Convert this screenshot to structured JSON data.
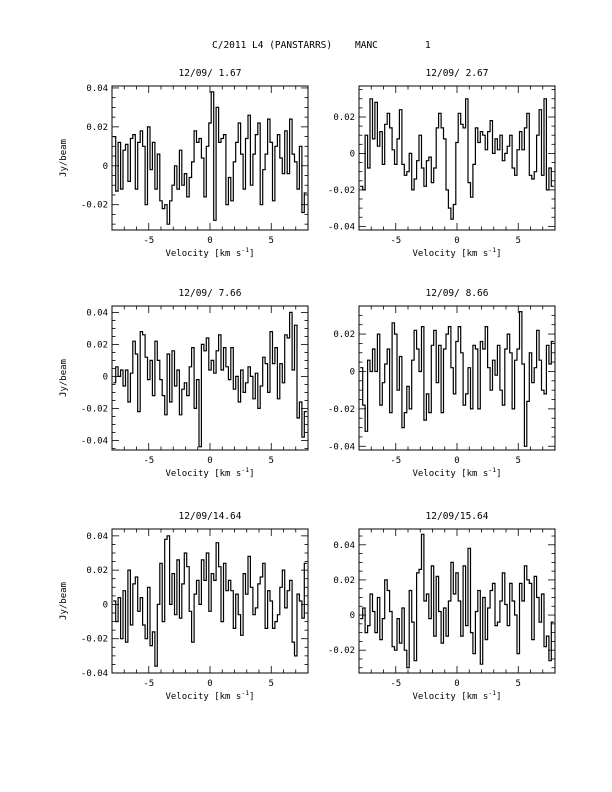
{
  "page": {
    "header": {
      "object": "C/2011 L4 (PANSTARRS)",
      "receiver": "MANC",
      "page_number": "1"
    }
  },
  "chart_data": [
    {
      "type": "line",
      "step": true,
      "title": "12/09/ 1.67",
      "xlabel": "Velocity [km s",
      "xlabel_exp": "-1",
      "ylabel": "Jy/beam",
      "xlim": [
        -8,
        8
      ],
      "ylim": [
        -0.033,
        0.041
      ],
      "xticks": [
        -5,
        0,
        5
      ],
      "yticks": [
        -0.02,
        0,
        0.02,
        0.04
      ],
      "ytick_labels": [
        "-0.02",
        "0",
        "0.02",
        "0.04"
      ],
      "x": [
        -7.8,
        -7.6,
        -7.4,
        -7.2,
        -7.0,
        -6.8,
        -6.6,
        -6.4,
        -6.2,
        -6.0,
        -5.8,
        -5.6,
        -5.4,
        -5.2,
        -5.0,
        -4.8,
        -4.6,
        -4.4,
        -4.2,
        -4.0,
        -3.8,
        -3.6,
        -3.4,
        -3.2,
        -3.0,
        -2.8,
        -2.6,
        -2.4,
        -2.2,
        -2.0,
        -1.8,
        -1.6,
        -1.4,
        -1.2,
        -1.0,
        -0.8,
        -0.6,
        -0.4,
        -0.2,
        0.0,
        0.2,
        0.4,
        0.6,
        0.8,
        1.0,
        1.2,
        1.4,
        1.6,
        1.8,
        2.0,
        2.2,
        2.4,
        2.6,
        2.8,
        3.0,
        3.2,
        3.4,
        3.6,
        3.8,
        4.0,
        4.2,
        4.4,
        4.6,
        4.8,
        5.0,
        5.2,
        5.4,
        5.6,
        5.8,
        6.0,
        6.2,
        6.4,
        6.6,
        6.8,
        7.0,
        7.2,
        7.4,
        7.6,
        7.8
      ],
      "y": [
        0.015,
        -0.013,
        0.012,
        -0.012,
        0.008,
        0.011,
        -0.008,
        0.014,
        0.016,
        -0.012,
        0.012,
        0.018,
        0.01,
        -0.02,
        0.02,
        -0.002,
        0.012,
        -0.012,
        0.006,
        -0.018,
        -0.022,
        -0.02,
        -0.03,
        -0.018,
        -0.01,
        0.0,
        -0.012,
        0.008,
        -0.01,
        -0.004,
        -0.016,
        -0.006,
        0.002,
        0.018,
        0.012,
        0.014,
        0.004,
        -0.016,
        0.01,
        0.022,
        0.038,
        -0.028,
        0.03,
        0.012,
        0.014,
        0.016,
        -0.02,
        -0.006,
        -0.018,
        0.002,
        0.012,
        0.022,
        0.006,
        -0.012,
        0.014,
        0.026,
        -0.01,
        0.006,
        0.016,
        0.022,
        -0.02,
        -0.002,
        0.006,
        0.024,
        0.012,
        -0.018,
        0.01,
        0.016,
        0.004,
        -0.004,
        0.018,
        -0.004,
        0.024,
        0.006,
        0.002,
        -0.012,
        0.01,
        -0.024,
        -0.014
      ]
    },
    {
      "type": "line",
      "step": true,
      "title": "12/09/ 2.67",
      "xlabel": "Velocity [km s",
      "xlabel_exp": "-1",
      "ylabel": "",
      "xlim": [
        -8,
        8
      ],
      "ylim": [
        -0.042,
        0.037
      ],
      "xticks": [
        -5,
        0,
        5
      ],
      "yticks": [
        -0.04,
        -0.02,
        0,
        0.02
      ],
      "ytick_labels": [
        "-0.04",
        "-0.02",
        "0",
        "0.02"
      ],
      "x": [
        -7.8,
        -7.6,
        -7.4,
        -7.2,
        -7.0,
        -6.8,
        -6.6,
        -6.4,
        -6.2,
        -6.0,
        -5.8,
        -5.6,
        -5.4,
        -5.2,
        -5.0,
        -4.8,
        -4.6,
        -4.4,
        -4.2,
        -4.0,
        -3.8,
        -3.6,
        -3.4,
        -3.2,
        -3.0,
        -2.8,
        -2.6,
        -2.4,
        -2.2,
        -2.0,
        -1.8,
        -1.6,
        -1.4,
        -1.2,
        -1.0,
        -0.8,
        -0.6,
        -0.4,
        -0.2,
        0.0,
        0.2,
        0.4,
        0.6,
        0.8,
        1.0,
        1.2,
        1.4,
        1.6,
        1.8,
        2.0,
        2.2,
        2.4,
        2.6,
        2.8,
        3.0,
        3.2,
        3.4,
        3.6,
        3.8,
        4.0,
        4.2,
        4.4,
        4.6,
        4.8,
        5.0,
        5.2,
        5.4,
        5.6,
        5.8,
        6.0,
        6.2,
        6.4,
        6.6,
        6.8,
        7.0,
        7.2,
        7.4,
        7.6,
        7.8
      ],
      "y": [
        -0.018,
        -0.02,
        0.01,
        -0.008,
        0.03,
        0.008,
        0.028,
        0.004,
        0.012,
        -0.006,
        0.016,
        0.022,
        0.014,
        0.002,
        -0.006,
        0.008,
        0.024,
        -0.006,
        -0.012,
        -0.01,
        0.0,
        -0.02,
        -0.014,
        -0.004,
        0.01,
        -0.008,
        -0.018,
        -0.004,
        -0.002,
        -0.016,
        -0.008,
        0.014,
        0.022,
        0.014,
        0.008,
        -0.02,
        -0.03,
        -0.036,
        -0.028,
        0.006,
        0.022,
        0.016,
        0.014,
        0.03,
        -0.016,
        -0.024,
        -0.006,
        0.014,
        0.006,
        0.012,
        0.01,
        0.002,
        0.012,
        0.018,
        0.0,
        0.008,
        0.002,
        0.01,
        -0.004,
        0.0,
        0.004,
        0.01,
        -0.008,
        -0.012,
        0.002,
        0.012,
        0.002,
        0.014,
        0.022,
        -0.012,
        -0.014,
        -0.01,
        0.01,
        0.024,
        -0.012,
        0.03,
        -0.02,
        -0.008,
        -0.018
      ]
    },
    {
      "type": "line",
      "step": true,
      "title": "12/09/ 7.66",
      "xlabel": "Velocity [km s",
      "xlabel_exp": "-1",
      "ylabel": "Jy/beam",
      "xlim": [
        -8,
        8
      ],
      "ylim": [
        -0.046,
        0.044
      ],
      "xticks": [
        -5,
        0,
        5
      ],
      "yticks": [
        -0.04,
        -0.02,
        0,
        0.02,
        0.04
      ],
      "ytick_labels": [
        "-0.04",
        "-0.02",
        "0",
        "0.02",
        "0.04"
      ],
      "x": [
        -7.8,
        -7.6,
        -7.4,
        -7.2,
        -7.0,
        -6.8,
        -6.6,
        -6.4,
        -6.2,
        -6.0,
        -5.8,
        -5.6,
        -5.4,
        -5.2,
        -5.0,
        -4.8,
        -4.6,
        -4.4,
        -4.2,
        -4.0,
        -3.8,
        -3.6,
        -3.4,
        -3.2,
        -3.0,
        -2.8,
        -2.6,
        -2.4,
        -2.2,
        -2.0,
        -1.8,
        -1.6,
        -1.4,
        -1.2,
        -1.0,
        -0.8,
        -0.6,
        -0.4,
        -0.2,
        0.0,
        0.2,
        0.4,
        0.6,
        0.8,
        1.0,
        1.2,
        1.4,
        1.6,
        1.8,
        2.0,
        2.2,
        2.4,
        2.6,
        2.8,
        3.0,
        3.2,
        3.4,
        3.6,
        3.8,
        4.0,
        4.2,
        4.4,
        4.6,
        4.8,
        5.0,
        5.2,
        5.4,
        5.6,
        5.8,
        6.0,
        6.2,
        6.4,
        6.6,
        6.8,
        7.0,
        7.2,
        7.4,
        7.6,
        7.8
      ],
      "y": [
        -0.004,
        0.006,
        0.0,
        0.004,
        -0.006,
        0.004,
        -0.016,
        0.002,
        0.022,
        0.014,
        -0.022,
        0.028,
        0.026,
        0.012,
        -0.002,
        0.01,
        -0.012,
        0.022,
        0.01,
        -0.002,
        -0.012,
        -0.024,
        0.014,
        -0.016,
        0.016,
        -0.006,
        0.004,
        -0.024,
        -0.008,
        -0.004,
        -0.012,
        0.006,
        0.018,
        -0.02,
        -0.002,
        -0.044,
        0.02,
        0.016,
        0.024,
        0.004,
        0.01,
        0.002,
        0.016,
        0.026,
        0.004,
        0.018,
        0.006,
        -0.002,
        0.018,
        -0.008,
        0.0,
        -0.016,
        0.004,
        -0.01,
        -0.004,
        0.006,
        0.0,
        -0.014,
        0.002,
        -0.02,
        -0.006,
        0.012,
        0.008,
        -0.01,
        0.028,
        0.008,
        0.018,
        -0.014,
        0.008,
        -0.004,
        0.026,
        0.024,
        0.04,
        0.004,
        0.032,
        -0.026,
        -0.016,
        -0.038,
        -0.022
      ]
    },
    {
      "type": "line",
      "step": true,
      "title": "12/09/ 8.66",
      "xlabel": "Velocity [km s",
      "xlabel_exp": "-1",
      "ylabel": "",
      "xlim": [
        -8,
        8
      ],
      "ylim": [
        -0.042,
        0.035
      ],
      "xticks": [
        -5,
        0,
        5
      ],
      "yticks": [
        -0.04,
        -0.02,
        0,
        0.02
      ],
      "ytick_labels": [
        "-0.04",
        "-0.02",
        "0",
        "0.02"
      ],
      "x": [
        -7.8,
        -7.6,
        -7.4,
        -7.2,
        -7.0,
        -6.8,
        -6.6,
        -6.4,
        -6.2,
        -6.0,
        -5.8,
        -5.6,
        -5.4,
        -5.2,
        -5.0,
        -4.8,
        -4.6,
        -4.4,
        -4.2,
        -4.0,
        -3.8,
        -3.6,
        -3.4,
        -3.2,
        -3.0,
        -2.8,
        -2.6,
        -2.4,
        -2.2,
        -2.0,
        -1.8,
        -1.6,
        -1.4,
        -1.2,
        -1.0,
        -0.8,
        -0.6,
        -0.4,
        -0.2,
        0.0,
        0.2,
        0.4,
        0.6,
        0.8,
        1.0,
        1.2,
        1.4,
        1.6,
        1.8,
        2.0,
        2.2,
        2.4,
        2.6,
        2.8,
        3.0,
        3.2,
        3.4,
        3.6,
        3.8,
        4.0,
        4.2,
        4.4,
        4.6,
        4.8,
        5.0,
        5.2,
        5.4,
        5.6,
        5.8,
        6.0,
        6.2,
        6.4,
        6.6,
        6.8,
        7.0,
        7.2,
        7.4,
        7.6,
        7.8
      ],
      "y": [
        0.002,
        -0.018,
        -0.032,
        0.006,
        0.0,
        0.012,
        0.0,
        0.02,
        -0.018,
        -0.006,
        0.004,
        0.012,
        -0.022,
        0.026,
        0.02,
        -0.01,
        0.008,
        -0.03,
        -0.022,
        -0.008,
        -0.02,
        0.006,
        0.022,
        0.012,
        0.0,
        0.024,
        -0.026,
        -0.012,
        -0.022,
        0.014,
        0.022,
        -0.006,
        0.014,
        -0.022,
        0.012,
        0.02,
        0.024,
        0.002,
        -0.012,
        0.016,
        0.024,
        0.01,
        -0.018,
        -0.012,
        0.002,
        -0.02,
        0.014,
        0.012,
        -0.02,
        0.016,
        0.012,
        0.024,
        0.002,
        -0.01,
        0.006,
        -0.002,
        0.014,
        -0.01,
        -0.018,
        0.012,
        0.02,
        0.01,
        -0.02,
        0.006,
        0.012,
        0.032,
        0.004,
        -0.04,
        -0.016,
        0.01,
        -0.006,
        0.002,
        0.022,
        0.006,
        -0.01,
        -0.012,
        0.014,
        0.004,
        0.016
      ]
    },
    {
      "type": "line",
      "step": true,
      "title": "12/09/14.64",
      "xlabel": "Velocity [km s",
      "xlabel_exp": "-1",
      "ylabel": "Jy/beam",
      "xlim": [
        -8,
        8
      ],
      "ylim": [
        -0.04,
        0.044
      ],
      "xticks": [
        -5,
        0,
        5
      ],
      "yticks": [
        -0.04,
        -0.02,
        0,
        0.02,
        0.04
      ],
      "ytick_labels": [
        "-0.04",
        "-0.02",
        "0",
        "0.02",
        "0.04"
      ],
      "x": [
        -7.8,
        -7.6,
        -7.4,
        -7.2,
        -7.0,
        -6.8,
        -6.6,
        -6.4,
        -6.2,
        -6.0,
        -5.8,
        -5.6,
        -5.4,
        -5.2,
        -5.0,
        -4.8,
        -4.6,
        -4.4,
        -4.2,
        -4.0,
        -3.8,
        -3.6,
        -3.4,
        -3.2,
        -3.0,
        -2.8,
        -2.6,
        -2.4,
        -2.2,
        -2.0,
        -1.8,
        -1.6,
        -1.4,
        -1.2,
        -1.0,
        -0.8,
        -0.6,
        -0.4,
        -0.2,
        0.0,
        0.2,
        0.4,
        0.6,
        0.8,
        1.0,
        1.2,
        1.4,
        1.6,
        1.8,
        2.0,
        2.2,
        2.4,
        2.6,
        2.8,
        3.0,
        3.2,
        3.4,
        3.6,
        3.8,
        4.0,
        4.2,
        4.4,
        4.6,
        4.8,
        5.0,
        5.2,
        5.4,
        5.6,
        5.8,
        6.0,
        6.2,
        6.4,
        6.6,
        6.8,
        7.0,
        7.2,
        7.4,
        7.6,
        7.8
      ],
      "y": [
        0.002,
        -0.01,
        0.004,
        -0.02,
        0.008,
        -0.022,
        0.02,
        -0.012,
        0.012,
        0.016,
        -0.004,
        0.004,
        -0.012,
        -0.02,
        0.01,
        -0.024,
        -0.016,
        -0.036,
        0.0,
        0.024,
        -0.01,
        0.038,
        0.04,
        0.0,
        0.018,
        -0.006,
        0.026,
        -0.008,
        0.012,
        0.03,
        0.022,
        -0.004,
        -0.022,
        0.006,
        0.014,
        0.0,
        0.026,
        0.014,
        0.03,
        -0.004,
        0.018,
        0.014,
        0.036,
        0.022,
        -0.01,
        0.024,
        0.008,
        0.014,
        0.008,
        -0.014,
        0.006,
        -0.006,
        -0.018,
        0.018,
        0.006,
        0.028,
        0.01,
        -0.006,
        -0.002,
        0.012,
        0.016,
        0.024,
        -0.014,
        0.008,
        0.002,
        -0.014,
        -0.01,
        -0.006,
        0.01,
        0.02,
        -0.002,
        0.008,
        0.014,
        -0.022,
        -0.03,
        0.006,
        0.002,
        -0.008,
        0.024
      ]
    },
    {
      "type": "line",
      "step": true,
      "title": "12/09/15.64",
      "xlabel": "Velocity [km s",
      "xlabel_exp": "-1",
      "ylabel": "",
      "xlim": [
        -8,
        8
      ],
      "ylim": [
        -0.033,
        0.049
      ],
      "xticks": [
        -5,
        0,
        5
      ],
      "yticks": [
        -0.02,
        0,
        0.02,
        0.04
      ],
      "ytick_labels": [
        "-0.02",
        "0",
        "0.02",
        "0.04"
      ],
      "x": [
        -7.8,
        -7.6,
        -7.4,
        -7.2,
        -7.0,
        -6.8,
        -6.6,
        -6.4,
        -6.2,
        -6.0,
        -5.8,
        -5.6,
        -5.4,
        -5.2,
        -5.0,
        -4.8,
        -4.6,
        -4.4,
        -4.2,
        -4.0,
        -3.8,
        -3.6,
        -3.4,
        -3.2,
        -3.0,
        -2.8,
        -2.6,
        -2.4,
        -2.2,
        -2.0,
        -1.8,
        -1.6,
        -1.4,
        -1.2,
        -1.0,
        -0.8,
        -0.6,
        -0.4,
        -0.2,
        0.0,
        0.2,
        0.4,
        0.6,
        0.8,
        1.0,
        1.2,
        1.4,
        1.6,
        1.8,
        2.0,
        2.2,
        2.4,
        2.6,
        2.8,
        3.0,
        3.2,
        3.4,
        3.6,
        3.8,
        4.0,
        4.2,
        4.4,
        4.6,
        4.8,
        5.0,
        5.2,
        5.4,
        5.6,
        5.8,
        6.0,
        6.2,
        6.4,
        6.6,
        6.8,
        7.0,
        7.2,
        7.4,
        7.6,
        7.8
      ],
      "y": [
        -0.002,
        0.004,
        -0.01,
        -0.006,
        0.012,
        0.002,
        -0.01,
        0.01,
        -0.014,
        -0.002,
        0.02,
        0.014,
        0.002,
        -0.018,
        -0.02,
        -0.002,
        -0.016,
        0.004,
        -0.02,
        -0.03,
        0.014,
        -0.004,
        -0.026,
        0.024,
        0.026,
        0.046,
        0.008,
        0.012,
        -0.002,
        0.028,
        -0.012,
        0.022,
        0.002,
        -0.016,
        0.004,
        -0.012,
        0.008,
        0.03,
        0.012,
        0.024,
        0.008,
        -0.012,
        0.028,
        -0.006,
        0.038,
        -0.01,
        -0.022,
        0.002,
        0.014,
        -0.028,
        0.01,
        -0.014,
        0.004,
        0.014,
        0.018,
        -0.006,
        -0.004,
        0.008,
        0.024,
        0.006,
        -0.006,
        0.018,
        0.008,
        0.0,
        -0.022,
        0.018,
        0.008,
        0.028,
        0.02,
        0.018,
        -0.014,
        0.022,
        0.01,
        -0.004,
        0.012,
        -0.018,
        -0.012,
        -0.026,
        -0.004
      ]
    }
  ]
}
